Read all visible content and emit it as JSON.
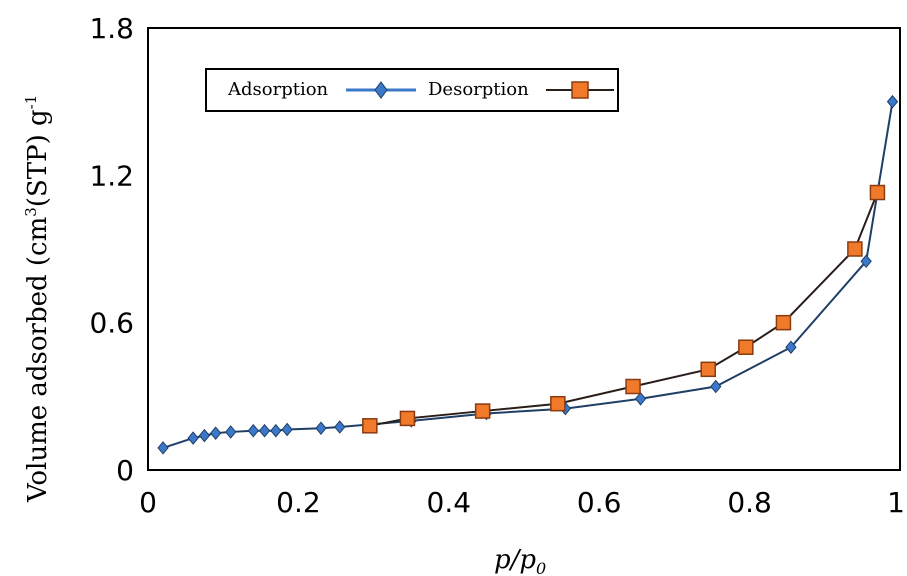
{
  "chart_data": {
    "type": "line",
    "title": "",
    "xlabel": "p/p",
    "xlabel_sub": "0",
    "ylabel": "Volume adsorbed (cm",
    "ylabel_sup": "3",
    "ylabel_end": "(STP) g",
    "ylabel_sup2": "-1",
    "xlim": [
      0,
      1
    ],
    "ylim": [
      0,
      1.8
    ],
    "x_ticks": [
      "0",
      "0.2",
      "0.4",
      "0.6",
      "0.8",
      "1"
    ],
    "x_tick_values": [
      0,
      0.2,
      0.4,
      0.6,
      0.8,
      1
    ],
    "y_ticks": [
      "0",
      "0.6",
      "1.2",
      "1.8"
    ],
    "y_tick_values": [
      0,
      0.6,
      1.2,
      1.8
    ],
    "grid": false,
    "legend_position": "top-left",
    "series": [
      {
        "name": "Adsorption",
        "color": "#3b78c9",
        "line_color": "#1f3f66",
        "marker": "diamond",
        "x": [
          0.02,
          0.06,
          0.075,
          0.09,
          0.11,
          0.14,
          0.155,
          0.17,
          0.185,
          0.23,
          0.255,
          0.35,
          0.45,
          0.555,
          0.655,
          0.755,
          0.855,
          0.955,
          0.99
        ],
        "y": [
          0.09,
          0.13,
          0.14,
          0.15,
          0.155,
          0.16,
          0.16,
          0.16,
          0.165,
          0.17,
          0.175,
          0.2,
          0.23,
          0.25,
          0.29,
          0.34,
          0.5,
          0.85,
          1.5
        ]
      },
      {
        "name": "Desorption",
        "color": "#f07a2a",
        "line_color": "#2a1e1a",
        "marker": "square",
        "x": [
          0.295,
          0.345,
          0.445,
          0.545,
          0.645,
          0.745,
          0.795,
          0.845,
          0.94,
          0.97
        ],
        "y": [
          0.18,
          0.21,
          0.24,
          0.27,
          0.34,
          0.41,
          0.5,
          0.6,
          0.9,
          1.13
        ]
      }
    ]
  }
}
